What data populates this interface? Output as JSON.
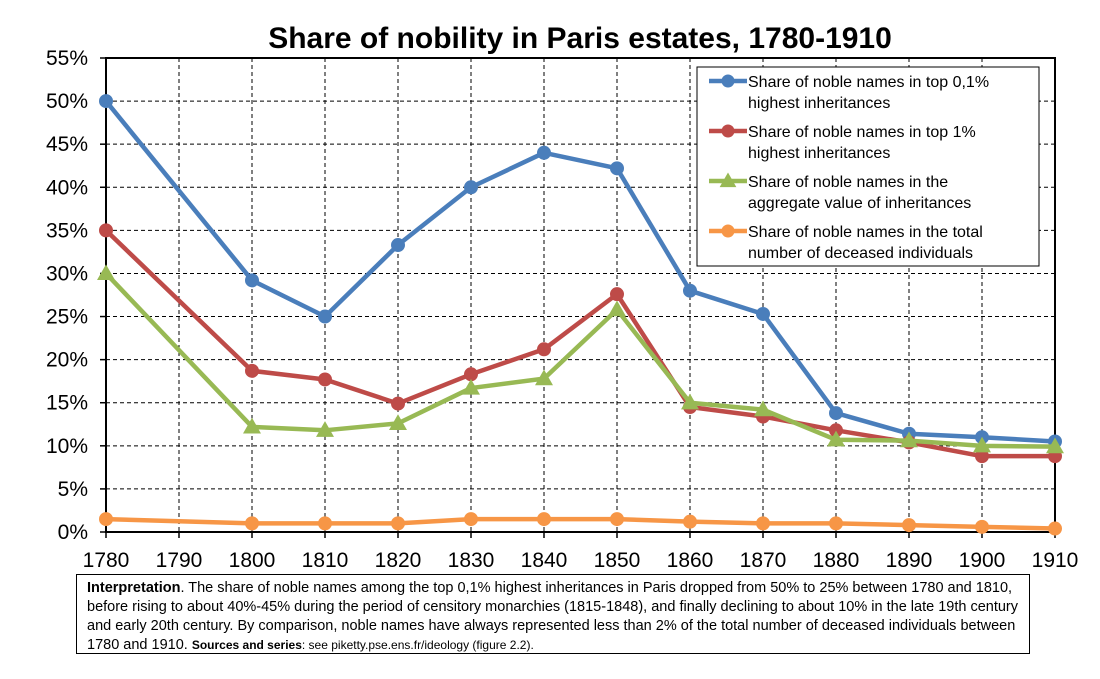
{
  "chart_data": {
    "type": "line",
    "title": "Share of nobility in Paris estates, 1780-1910",
    "xlabel": "",
    "ylabel": "",
    "x": [
      1780,
      1790,
      1800,
      1810,
      1820,
      1830,
      1840,
      1850,
      1860,
      1870,
      1880,
      1890,
      1900,
      1910
    ],
    "x_ticks": [
      "1780",
      "1790",
      "1800",
      "1810",
      "1820",
      "1830",
      "1840",
      "1850",
      "1860",
      "1870",
      "1880",
      "1890",
      "1900",
      "1910"
    ],
    "ylim": [
      0,
      0.55
    ],
    "y_ticks": [
      "0%",
      "5%",
      "10%",
      "15%",
      "20%",
      "25%",
      "30%",
      "35%",
      "40%",
      "45%",
      "50%",
      "55%"
    ],
    "grid": true,
    "legend_position": "top-right",
    "series": [
      {
        "name": "Share of noble names in top 0,1% highest inheritances",
        "legend_lines": [
          "Share of noble names in top 0,1%",
          "highest inheritances"
        ],
        "color": "#4a7ebb",
        "marker": "circle",
        "x": [
          1780,
          1800,
          1810,
          1820,
          1830,
          1840,
          1850,
          1860,
          1870,
          1880,
          1890,
          1900,
          1910
        ],
        "values": [
          0.5,
          0.292,
          0.25,
          0.333,
          0.4,
          0.44,
          0.422,
          0.28,
          0.253,
          0.138,
          0.114,
          0.11,
          0.105
        ]
      },
      {
        "name": "Share of noble names in top 1% highest inheritances",
        "legend_lines": [
          "Share of noble names in top 1%",
          "highest inheritances"
        ],
        "color": "#be4b48",
        "marker": "circle",
        "x": [
          1780,
          1800,
          1810,
          1820,
          1830,
          1840,
          1850,
          1860,
          1870,
          1880,
          1890,
          1900,
          1910
        ],
        "values": [
          0.35,
          0.187,
          0.177,
          0.149,
          0.183,
          0.212,
          0.276,
          0.145,
          0.134,
          0.118,
          0.104,
          0.088,
          0.088
        ]
      },
      {
        "name": "Share of noble names in the aggregate value of inheritances",
        "legend_lines": [
          "Share of noble names in the",
          "aggregate value of inheritances"
        ],
        "color": "#98b954",
        "marker": "triangle",
        "x": [
          1780,
          1800,
          1810,
          1820,
          1830,
          1840,
          1850,
          1860,
          1870,
          1880,
          1890,
          1900,
          1910
        ],
        "values": [
          0.3,
          0.122,
          0.118,
          0.126,
          0.167,
          0.178,
          0.258,
          0.15,
          0.142,
          0.107,
          0.106,
          0.1,
          0.099
        ]
      },
      {
        "name": "Share of noble names in the total number of deceased individuals",
        "legend_lines": [
          "Share of noble names in the total",
          "number of deceased individuals"
        ],
        "color": "#f79646",
        "marker": "circle",
        "x": [
          1780,
          1800,
          1810,
          1820,
          1830,
          1840,
          1850,
          1860,
          1870,
          1880,
          1890,
          1900,
          1910
        ],
        "values": [
          0.015,
          0.01,
          0.01,
          0.01,
          0.015,
          0.015,
          0.015,
          0.012,
          0.01,
          0.01,
          0.008,
          0.006,
          0.004
        ]
      }
    ]
  },
  "note": {
    "label": "Interpretation",
    "text": ". The share of noble names among the top 0,1% highest inheritances in Paris dropped from 50% to 25% between 1780 and 1810, before rising to about 40%-45% during the period of censitory monarchies (1815-1848), and finally declining to about 10% in the late 19th century and early 20th century. By comparison, noble names have always represented less than 2% of the total number of deceased individuals between 1780 and 1910.",
    "sources_label": "Sources and series",
    "sources_text": ": see piketty.pse.ens.fr/ideology (figure 2.2)."
  }
}
